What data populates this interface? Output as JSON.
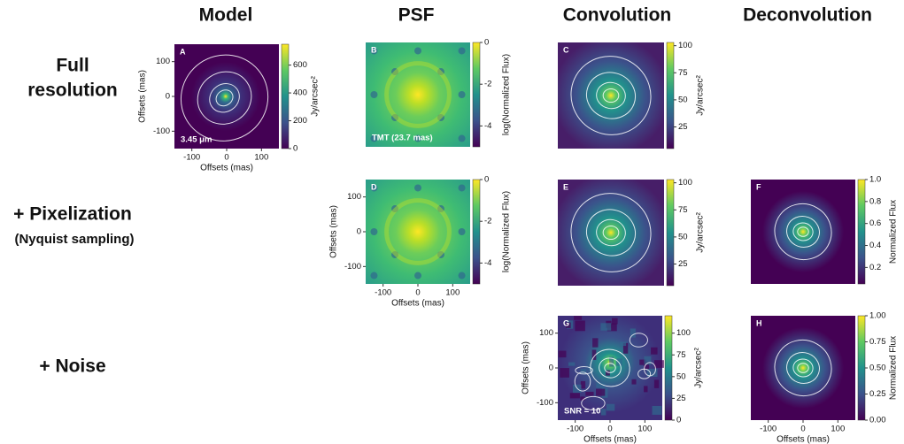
{
  "column_headers": [
    "Model",
    "PSF",
    "Convolution",
    "Deconvolution"
  ],
  "rows": [
    {
      "title": [
        "Full",
        "resolution"
      ]
    },
    {
      "title": [
        "+ Pixelization"
      ],
      "subtitle": "(Nyquist sampling)"
    },
    {
      "title": [
        "+ Noise"
      ]
    }
  ],
  "panels": [
    {
      "id": "A",
      "annotation": "3.45 μm",
      "colorbar": {
        "label": "Jy/arcsec²",
        "lim": [
          0,
          750
        ],
        "ticks": [
          0,
          200,
          400,
          600
        ]
      },
      "xaxis": {
        "label": "Offsets (mas)",
        "lim": [
          -150,
          150
        ],
        "ticks": [
          -100,
          0,
          100
        ]
      },
      "yaxis": {
        "label": "Offsets (mas)",
        "lim": [
          -150,
          150
        ],
        "ticks": [
          -100,
          0,
          100
        ]
      }
    },
    {
      "id": "B",
      "annotation": "TMT (23.7 mas)",
      "colorbar": {
        "label": "log(Normalized Flux)",
        "lim": [
          -5,
          0
        ],
        "ticks": [
          0,
          -2,
          -4
        ]
      }
    },
    {
      "id": "C",
      "colorbar": {
        "label": "Jy/arcsec²",
        "lim": [
          5,
          103
        ],
        "ticks": [
          25,
          50,
          75,
          100
        ]
      }
    },
    {
      "id": "D",
      "colorbar": {
        "label": "log(Normalized Flux)",
        "lim": [
          -5,
          0
        ],
        "ticks": [
          0,
          -2,
          -4
        ]
      },
      "xaxis": {
        "label": "Offsets (mas)",
        "lim": [
          -150,
          150
        ],
        "ticks": [
          -100,
          0,
          100
        ]
      },
      "yaxis": {
        "label": "Offsets (mas)",
        "lim": [
          -150,
          150
        ],
        "ticks": [
          -100,
          0,
          100
        ]
      }
    },
    {
      "id": "E",
      "colorbar": {
        "label": "Jy/arcsec²",
        "lim": [
          5,
          103
        ],
        "ticks": [
          25,
          50,
          75,
          100
        ]
      }
    },
    {
      "id": "F",
      "colorbar": {
        "label": "Normalized Flux",
        "lim": [
          0.05,
          1
        ],
        "ticks": [
          0.2,
          0.4,
          0.6,
          0.8,
          {
            "value": 1,
            "label": "1.0"
          }
        ]
      }
    },
    {
      "id": "G",
      "annotation": "SNR = 10",
      "colorbar": {
        "label": "Jy/arcsec²",
        "lim": [
          0,
          120
        ],
        "ticks": [
          0,
          25,
          50,
          75,
          100
        ]
      },
      "xaxis": {
        "label": "Offsets (mas)",
        "lim": [
          -150,
          150
        ],
        "ticks": [
          -100,
          0,
          100
        ]
      },
      "yaxis": {
        "label": "Offsets (mas)",
        "lim": [
          -150,
          150
        ],
        "ticks": [
          -100,
          0,
          100
        ]
      }
    },
    {
      "id": "H",
      "colorbar": {
        "label": "Normalized Flux",
        "lim": [
          0,
          1
        ],
        "ticks": [
          {
            "value": 0,
            "label": "0.00"
          },
          0.25,
          {
            "value": 0.5,
            "label": "0.50"
          },
          0.75,
          {
            "value": 1,
            "label": "1.00"
          }
        ]
      },
      "xaxis": {
        "label": "Offsets (mas)",
        "lim": [
          -150,
          150
        ],
        "ticks": [
          -100,
          0,
          100
        ]
      }
    }
  ]
}
